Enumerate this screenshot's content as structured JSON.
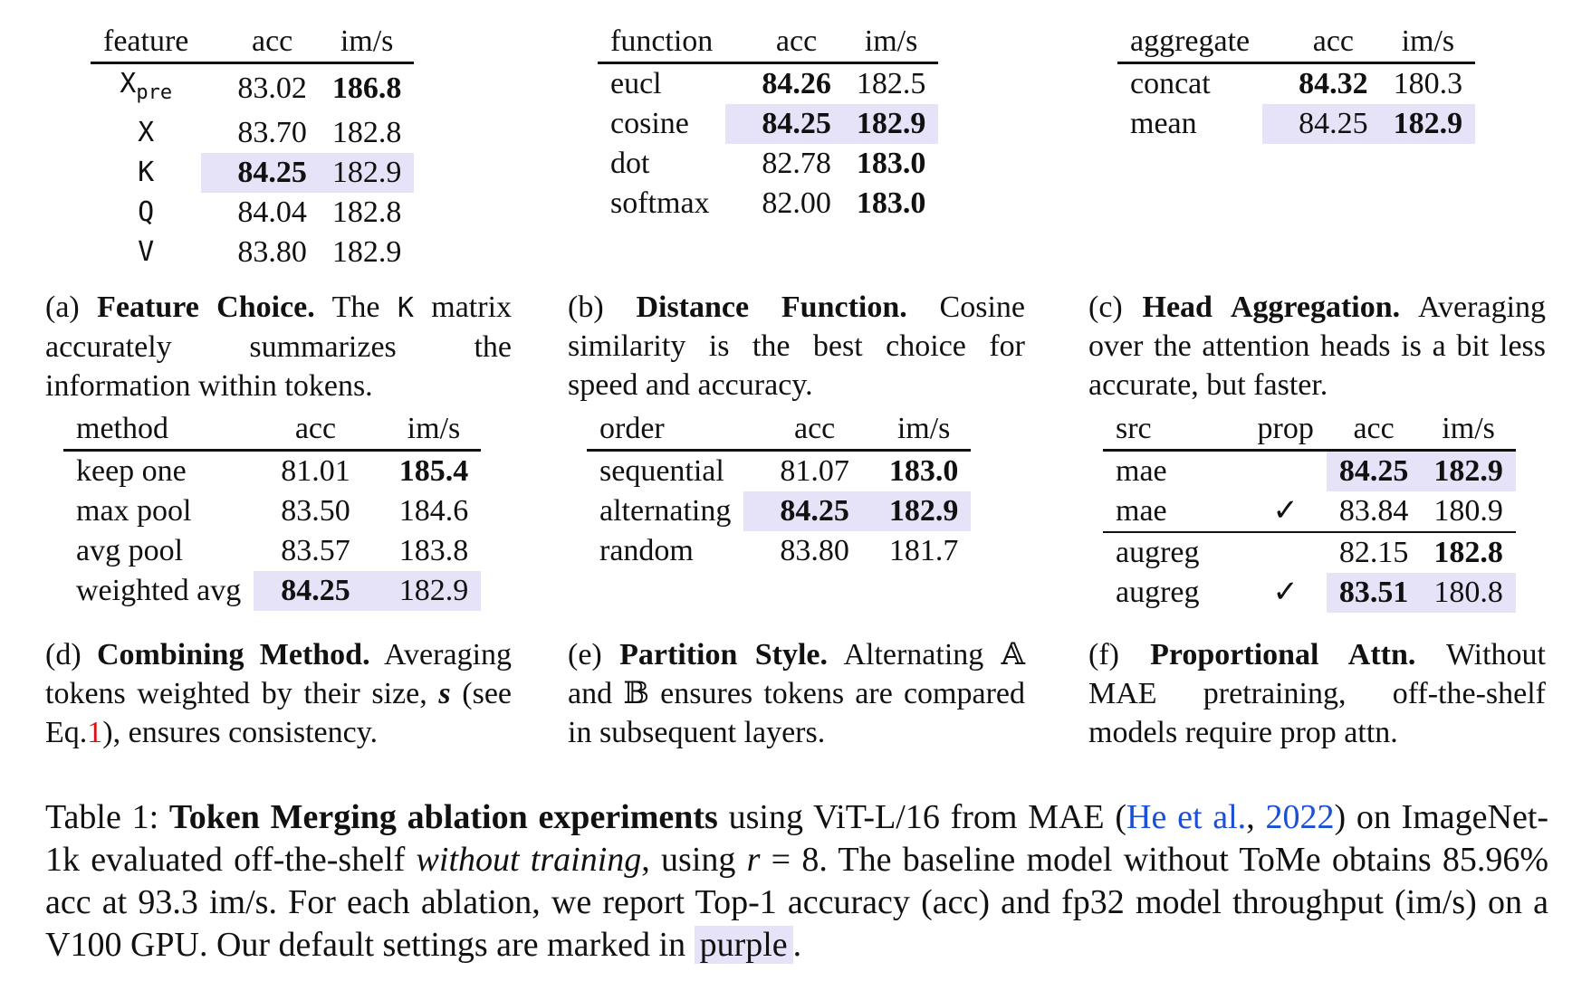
{
  "tables": {
    "a": {
      "headers": [
        "feature",
        "acc",
        "im/s"
      ],
      "rows": [
        {
          "feature": "X",
          "feature_sub": "pre",
          "acc": "83.02",
          "ims": "186.8"
        },
        {
          "feature": "X",
          "acc": "83.70",
          "ims": "182.8"
        },
        {
          "feature": "K",
          "acc": "84.25",
          "ims": "182.9"
        },
        {
          "feature": "Q",
          "acc": "84.04",
          "ims": "182.8"
        },
        {
          "feature": "V",
          "acc": "83.80",
          "ims": "182.9"
        }
      ],
      "caption": {
        "label": "(a)",
        "title": "Feature Choice.",
        "pre": "The",
        "mono": "K",
        "post": "matrix accurately summarizes the information within tokens."
      }
    },
    "b": {
      "headers": [
        "function",
        "acc",
        "im/s"
      ],
      "rows": [
        {
          "function": "eucl",
          "acc": "84.26",
          "ims": "182.5"
        },
        {
          "function": "cosine",
          "acc": "84.25",
          "ims": "182.9"
        },
        {
          "function": "dot",
          "acc": "82.78",
          "ims": "183.0"
        },
        {
          "function": "softmax",
          "acc": "82.00",
          "ims": "183.0"
        }
      ],
      "caption": {
        "label": "(b)",
        "title": "Distance Function.",
        "text": "Cosine similarity is the best choice for speed and accuracy."
      }
    },
    "c": {
      "headers": [
        "aggregate",
        "acc",
        "im/s"
      ],
      "rows": [
        {
          "aggregate": "concat",
          "acc": "84.32",
          "ims": "180.3"
        },
        {
          "aggregate": "mean",
          "acc": "84.25",
          "ims": "182.9"
        }
      ],
      "caption": {
        "label": "(c)",
        "title": "Head Aggregation.",
        "text": "Averaging over the attention heads is a bit less accurate, but faster."
      }
    },
    "d": {
      "headers": [
        "method",
        "acc",
        "im/s"
      ],
      "rows": [
        {
          "method": "keep one",
          "acc": "81.01",
          "ims": "185.4"
        },
        {
          "method": "max pool",
          "acc": "83.50",
          "ims": "184.6"
        },
        {
          "method": "avg pool",
          "acc": "83.57",
          "ims": "183.8"
        },
        {
          "method": "weighted avg",
          "acc": "84.25",
          "ims": "182.9"
        }
      ],
      "caption": {
        "label": "(d)",
        "title": "Combining Method.",
        "text1": "Averaging tokens weighted by their size,",
        "s": "s",
        "text2": "(see Eq.",
        "eq": "1",
        "text3": "), ensures consistency."
      }
    },
    "e": {
      "headers": [
        "order",
        "acc",
        "im/s"
      ],
      "rows": [
        {
          "order": "sequential",
          "acc": "81.07",
          "ims": "183.0"
        },
        {
          "order": "alternating",
          "acc": "84.25",
          "ims": "182.9"
        },
        {
          "order": "random",
          "acc": "83.80",
          "ims": "181.7"
        }
      ],
      "caption": {
        "label": "(e)",
        "title": "Partition Style.",
        "text": "Alternating 𝔸 and 𝔹 ensures tokens are compared in subsequent layers."
      }
    },
    "f": {
      "headers": [
        "src",
        "prop",
        "acc",
        "im/s"
      ],
      "rows": [
        {
          "src": "mae",
          "prop": "",
          "acc": "84.25",
          "ims": "182.9"
        },
        {
          "src": "mae",
          "prop": "✓",
          "acc": "83.84",
          "ims": "180.9"
        },
        {
          "src": "augreg",
          "prop": "",
          "acc": "82.15",
          "ims": "182.8"
        },
        {
          "src": "augreg",
          "prop": "✓",
          "acc": "83.51",
          "ims": "180.8"
        }
      ],
      "caption": {
        "label": "(f)",
        "title": "Proportional Attn.",
        "text": "Without MAE pretraining, off-the-shelf models require prop attn."
      }
    }
  },
  "main_caption": {
    "label": "Table 1:",
    "title": "Token Merging ablation experiments",
    "t1": "using ViT-L/16 from MAE (",
    "cite_author": "He et al.",
    "cite_sep": ", ",
    "cite_year": "2022",
    "t2": ") on ImageNet-1k evaluated off-the-shelf",
    "italic": "without training",
    "t3": ", using",
    "r": "r",
    "t4": "= 8. The baseline model without ToMe obtains 85.96% acc at 93.3 im/s. For each ablation, we report Top-1 accuracy (acc) and fp32 model throughput (im/s) on a V100 GPU. Our default settings are marked in",
    "purple": "purple",
    "t5": "."
  },
  "colors": {
    "highlight": "#e6e3f8",
    "link": "#1a4fd6",
    "eq_ref": "#dd1111"
  }
}
